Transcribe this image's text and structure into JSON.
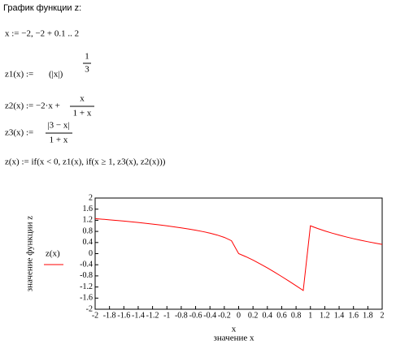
{
  "header": {
    "title": "График функции z:"
  },
  "formulas": {
    "x_def": "x := −2, −2 + 0.1 .. 2",
    "z1": {
      "lhs": "z1(x) :=",
      "base": "(|x|)",
      "numerator": "1",
      "denominator": "3"
    },
    "z2": {
      "lhs": "z2(x) := −2·x +",
      "numerator": "x",
      "denominator": "1 + x"
    },
    "z3": {
      "lhs": "z3(x) :=",
      "numerator": "|3 − x|",
      "denominator": "1 + x"
    },
    "z": "z(x) := if(x < 0, z1(x), if(x ≥ 1, z3(x), z2(x)))"
  },
  "chart_data": {
    "type": "line",
    "x_variable": "x",
    "x_label": "значение x",
    "y_label": "значение функции z",
    "x": [
      -2,
      -1.9,
      -1.8,
      -1.7,
      -1.6,
      -1.5,
      -1.4,
      -1.3,
      -1.2,
      -1.1,
      -1,
      -0.9,
      -0.8,
      -0.7,
      -0.6,
      -0.5,
      -0.4,
      -0.3,
      -0.2,
      -0.1,
      0,
      0.1,
      0.2,
      0.3,
      0.4,
      0.5,
      0.6,
      0.7,
      0.8,
      0.9,
      1,
      1.1,
      1.2,
      1.3,
      1.4,
      1.5,
      1.6,
      1.7,
      1.8,
      1.9,
      2
    ],
    "series": [
      {
        "name": "z(x)",
        "color": "#ff0000",
        "values": [
          1.26,
          1.239,
          1.216,
          1.193,
          1.17,
          1.145,
          1.119,
          1.091,
          1.063,
          1.032,
          1,
          0.965,
          0.928,
          0.888,
          0.843,
          0.794,
          0.737,
          0.669,
          0.585,
          0.464,
          0,
          -0.109,
          -0.233,
          -0.369,
          -0.514,
          -0.667,
          -0.825,
          -0.988,
          -1.156,
          -1.326,
          1,
          0.905,
          0.818,
          0.739,
          0.667,
          0.6,
          0.538,
          0.481,
          0.429,
          0.379,
          0.333
        ]
      }
    ],
    "xlim": [
      -2,
      2
    ],
    "ylim": [
      -2,
      2
    ],
    "xticks": [
      -2,
      -1.8,
      -1.6,
      -1.4,
      -1.2,
      -1,
      -0.8,
      -0.6,
      -0.4,
      -0.2,
      0,
      0.2,
      0.4,
      0.6,
      0.8,
      1,
      1.2,
      1.4,
      1.6,
      1.8,
      2
    ],
    "yticks": [
      -2,
      -1.6,
      -1.2,
      -0.8,
      -0.4,
      0,
      0.4,
      0.8,
      1.2,
      1.6,
      2
    ],
    "legend": "left",
    "grid": false
  }
}
